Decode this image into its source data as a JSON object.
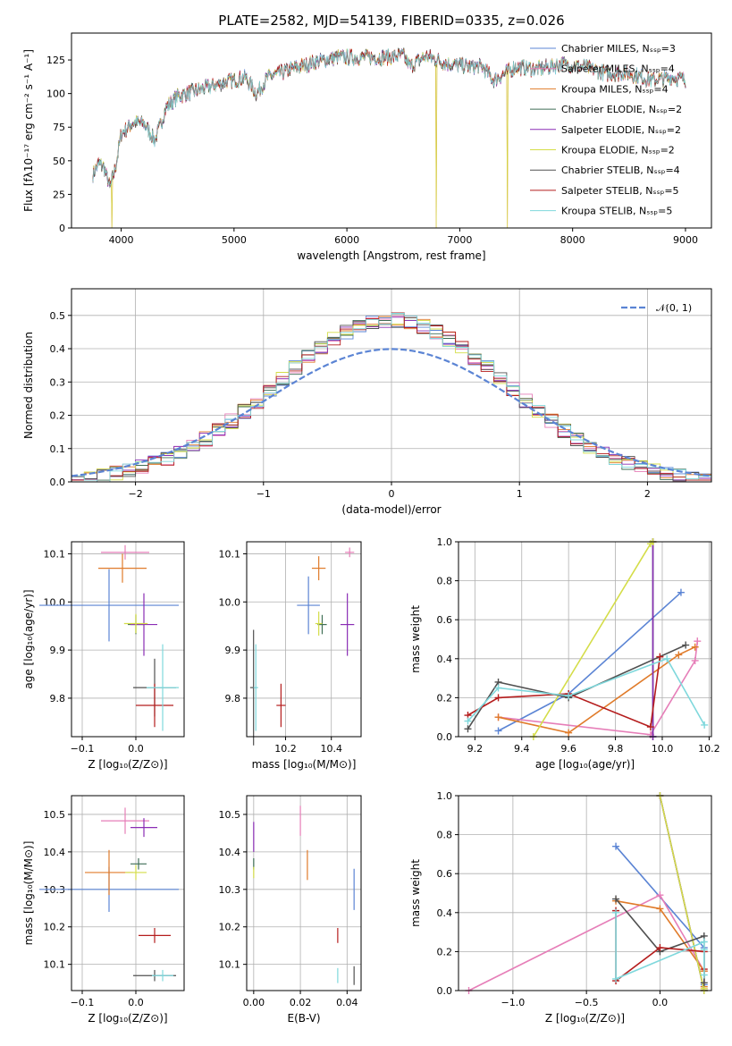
{
  "colors": [
    "#5b84d4",
    "#e67eb8",
    "#e07b2a",
    "#3f6e56",
    "#8a2db5",
    "#d4dd48",
    "#505050",
    "#b51d1d",
    "#7fd8dc"
  ],
  "chart_data": [
    {
      "id": "spectrum",
      "type": "line",
      "title": "PLATE=2582, MJD=54139, FIBERID=0335, z=0.026",
      "xlabel": "wavelength [Angstrom, rest frame]",
      "ylabel": "Flux [fλ10⁻¹⁷ erg cm⁻² s⁻¹ A⁻¹]",
      "xlim": [
        3560,
        9230
      ],
      "ylim": [
        0,
        145
      ],
      "xticks": [
        4000,
        5000,
        6000,
        7000,
        8000,
        9000
      ],
      "yticks": [
        0,
        25,
        50,
        75,
        100,
        125
      ],
      "grid": false,
      "legend_position": "top-right",
      "legend": [
        "Chabrier MILES, Nₛₛₚ=3",
        "Salpeter MILES, Nₛₛₚ=4",
        "Kroupa MILES, Nₛₛₚ=4",
        "Chabrier ELODIE, Nₛₛₚ=2",
        "Salpeter ELODIE, Nₛₛₚ=2",
        "Kroupa ELODIE, Nₛₛₚ=2",
        "Chabrier STELIB, Nₛₛₚ=4",
        "Salpeter STELIB, Nₛₛₚ=5",
        "Kroupa STELIB, Nₛₛₚ=5"
      ],
      "continuum": [
        [
          3750,
          40
        ],
        [
          3800,
          48
        ],
        [
          3850,
          45
        ],
        [
          3900,
          30
        ],
        [
          3950,
          45
        ],
        [
          4000,
          70
        ],
        [
          4100,
          78
        ],
        [
          4200,
          78
        ],
        [
          4300,
          65
        ],
        [
          4400,
          90
        ],
        [
          4500,
          98
        ],
        [
          4700,
          103
        ],
        [
          4900,
          108
        ],
        [
          5100,
          112
        ],
        [
          5200,
          100
        ],
        [
          5300,
          112
        ],
        [
          5500,
          118
        ],
        [
          5700,
          123
        ],
        [
          5900,
          127
        ],
        [
          6100,
          127
        ],
        [
          6300,
          127
        ],
        [
          6500,
          128
        ],
        [
          6560,
          120
        ],
        [
          6700,
          128
        ],
        [
          6900,
          122
        ],
        [
          7100,
          120
        ],
        [
          7200,
          120
        ],
        [
          7300,
          110
        ],
        [
          7500,
          120
        ],
        [
          7700,
          118
        ],
        [
          7900,
          122
        ],
        [
          8100,
          120
        ],
        [
          8300,
          115
        ],
        [
          8500,
          115
        ],
        [
          8700,
          110
        ],
        [
          8900,
          112
        ],
        [
          9000,
          110
        ]
      ],
      "deep_drops": [
        [
          3920,
          0
        ],
        [
          6790,
          0
        ],
        [
          7420,
          0
        ]
      ]
    },
    {
      "id": "residuals",
      "type": "line",
      "xlabel": "(data-model)/error",
      "ylabel": "Normed distribution",
      "xlim": [
        -2.5,
        2.5
      ],
      "ylim": [
        0,
        0.58
      ],
      "xticks": [
        -2,
        -1,
        0,
        1,
        2
      ],
      "xtick_labels": [
        "−2",
        "−1",
        "0",
        "1",
        "2"
      ],
      "yticks": [
        0,
        0.1,
        0.2,
        0.3,
        0.4,
        0.5
      ],
      "ytick_labels": [
        "0.0",
        "0.1",
        "0.2",
        "0.3",
        "0.4",
        "0.5"
      ],
      "grid": true,
      "legend_position": "top-right",
      "reference_label": "𝒩(0, 1)",
      "reference_color": "#5b84d4"
    },
    {
      "id": "age_vs_Z",
      "type": "scatter",
      "xlabel": "Z [log₁₀(Z/Z⊙)]",
      "ylabel": "age  [log₁₀(age/yr)]",
      "xlim": [
        -0.12,
        0.09
      ],
      "ylim": [
        9.72,
        10.125
      ],
      "xticks": [
        -0.1,
        0.0
      ],
      "xtick_labels": [
        "−0.1",
        "0.0"
      ],
      "yticks": [
        9.8,
        9.9,
        10.0,
        10.1
      ],
      "ytick_labels": [
        "9.8",
        "9.9",
        "10.0",
        "10.1"
      ],
      "grid": true,
      "points": [
        {
          "x": -0.05,
          "y": 9.993,
          "xerr": 0.13,
          "yerr": 0.075,
          "c": 0
        },
        {
          "x": -0.02,
          "y": 10.103,
          "xerr": 0.045,
          "yerr": 0.015,
          "c": 1
        },
        {
          "x": -0.025,
          "y": 10.07,
          "xerr": 0.045,
          "yerr": 0.03,
          "c": 2
        },
        {
          "x": 0.0,
          "y": 9.953,
          "xerr": 0.015,
          "yerr": 0.02,
          "c": 3
        },
        {
          "x": 0.015,
          "y": 9.953,
          "xerr": 0.025,
          "yerr": 0.065,
          "c": 4
        },
        {
          "x": 0.0,
          "y": 9.955,
          "xerr": 0.022,
          "yerr": 0.02,
          "c": 5
        },
        {
          "x": 0.035,
          "y": 9.822,
          "xerr": 0.04,
          "yerr": 0.06,
          "c": 6
        },
        {
          "x": 0.035,
          "y": 9.785,
          "xerr": 0.035,
          "yerr": 0.045,
          "c": 7
        },
        {
          "x": 0.05,
          "y": 9.822,
          "xerr": 0.03,
          "yerr": 0.09,
          "c": 8
        }
      ]
    },
    {
      "id": "age_vs_mass",
      "type": "scatter",
      "xlabel": "mass [log₁₀(M/M⊙)]",
      "ylabel": "",
      "xlim": [
        10.03,
        10.53
      ],
      "ylim": [
        9.72,
        10.125
      ],
      "xticks": [
        10.2,
        10.4
      ],
      "xtick_labels": [
        "10.2",
        "10.4"
      ],
      "yticks": [
        9.8,
        9.9,
        10.0,
        10.1
      ],
      "ytick_labels": [
        "9.8",
        "9.9",
        "10.0",
        "10.1"
      ],
      "grid": true,
      "points": [
        {
          "x": 10.3,
          "y": 9.993,
          "xerr": 0.05,
          "yerr": 0.06,
          "c": 0
        },
        {
          "x": 10.48,
          "y": 10.103,
          "xerr": 0.02,
          "yerr": 0.01,
          "c": 1
        },
        {
          "x": 10.345,
          "y": 10.07,
          "xerr": 0.03,
          "yerr": 0.025,
          "c": 2
        },
        {
          "x": 10.36,
          "y": 9.953,
          "xerr": 0.02,
          "yerr": 0.02,
          "c": 3
        },
        {
          "x": 10.47,
          "y": 9.953,
          "xerr": 0.03,
          "yerr": 0.065,
          "c": 4
        },
        {
          "x": 10.345,
          "y": 9.955,
          "xerr": 0.015,
          "yerr": 0.025,
          "c": 5
        },
        {
          "x": 10.06,
          "y": 9.822,
          "xerr": 0.015,
          "yerr": 0.12,
          "c": 6
        },
        {
          "x": 10.18,
          "y": 9.785,
          "xerr": 0.02,
          "yerr": 0.045,
          "c": 7
        },
        {
          "x": 10.07,
          "y": 9.822,
          "xerr": 0.01,
          "yerr": 0.09,
          "c": 8
        }
      ]
    },
    {
      "id": "weights_vs_age",
      "type": "line",
      "xlabel": "age  [log₁₀(age/yr)]",
      "ylabel": "mass weight",
      "xlim": [
        9.13,
        10.21
      ],
      "ylim": [
        0,
        1.0
      ],
      "xticks": [
        9.2,
        9.4,
        9.6,
        9.8,
        10.0,
        10.2
      ],
      "xtick_labels": [
        "9.2",
        "9.4",
        "9.6",
        "9.8",
        "10.0",
        "10.2"
      ],
      "yticks": [
        0,
        0.2,
        0.4,
        0.6,
        0.8,
        1.0
      ],
      "ytick_labels": [
        "0.0",
        "0.2",
        "0.4",
        "0.6",
        "0.8",
        "1.0"
      ],
      "grid": true,
      "series": [
        {
          "c": 0,
          "x": [
            9.3,
            9.6,
            10.08
          ],
          "y": [
            0.03,
            0.22,
            0.74
          ]
        },
        {
          "c": 1,
          "x": [
            9.3,
            9.95,
            10.14,
            10.15
          ],
          "y": [
            0.1,
            0.01,
            0.39,
            0.49
          ]
        },
        {
          "c": 2,
          "x": [
            9.3,
            9.6,
            10.07,
            10.14
          ],
          "y": [
            0.1,
            0.02,
            0.42,
            0.46
          ]
        },
        {
          "c": 3,
          "x": [
            9.96,
            9.96
          ],
          "y": [
            0.0,
            1.0
          ]
        },
        {
          "c": 4,
          "x": [
            9.96,
            9.96
          ],
          "y": [
            0.0,
            1.0
          ]
        },
        {
          "c": 5,
          "x": [
            9.45,
            9.95,
            9.96
          ],
          "y": [
            0.0,
            0.99,
            1.0
          ]
        },
        {
          "c": 6,
          "x": [
            9.17,
            9.3,
            9.6,
            10.1
          ],
          "y": [
            0.04,
            0.28,
            0.2,
            0.47
          ]
        },
        {
          "c": 7,
          "x": [
            9.17,
            9.3,
            9.6,
            9.95,
            9.99
          ],
          "y": [
            0.11,
            0.2,
            0.22,
            0.05,
            0.41
          ]
        },
        {
          "c": 8,
          "x": [
            9.17,
            9.3,
            9.6,
            10.02,
            10.18
          ],
          "y": [
            0.08,
            0.25,
            0.21,
            0.4,
            0.06
          ]
        }
      ]
    },
    {
      "id": "mass_vs_Z",
      "type": "scatter",
      "xlabel": "Z [log₁₀(Z/Z⊙)]",
      "ylabel": "mass [log₁₀(M/M⊙)]",
      "xlim": [
        -0.12,
        0.09
      ],
      "ylim": [
        10.03,
        10.55
      ],
      "xticks": [
        -0.1,
        0.0
      ],
      "xtick_labels": [
        "−0.1",
        "0.0"
      ],
      "yticks": [
        10.1,
        10.2,
        10.3,
        10.4,
        10.5
      ],
      "ytick_labels": [
        "10.1",
        "10.2",
        "10.3",
        "10.4",
        "10.5"
      ],
      "grid": true,
      "points": [
        {
          "x": -0.05,
          "y": 10.3,
          "xerr": 0.13,
          "yerr": 0.06,
          "c": 0
        },
        {
          "x": -0.02,
          "y": 10.483,
          "xerr": 0.045,
          "yerr": 0.035,
          "c": 1
        },
        {
          "x": -0.05,
          "y": 10.345,
          "xerr": 0.045,
          "yerr": 0.06,
          "c": 2
        },
        {
          "x": 0.005,
          "y": 10.368,
          "xerr": 0.015,
          "yerr": 0.015,
          "c": 3
        },
        {
          "x": 0.015,
          "y": 10.465,
          "xerr": 0.025,
          "yerr": 0.025,
          "c": 4
        },
        {
          "x": 0.0,
          "y": 10.345,
          "xerr": 0.02,
          "yerr": 0.02,
          "c": 5
        },
        {
          "x": 0.035,
          "y": 10.07,
          "xerr": 0.04,
          "yerr": 0.015,
          "c": 6
        },
        {
          "x": 0.035,
          "y": 10.177,
          "xerr": 0.03,
          "yerr": 0.02,
          "c": 7
        },
        {
          "x": 0.05,
          "y": 10.07,
          "xerr": 0.02,
          "yerr": 0.015,
          "c": 8
        }
      ]
    },
    {
      "id": "mass_vs_ebv",
      "type": "scatter",
      "xlabel": "E(B-V)",
      "ylabel": "",
      "xlim": [
        -0.003,
        0.046
      ],
      "ylim": [
        10.03,
        10.55
      ],
      "xticks": [
        0.0,
        0.02,
        0.04
      ],
      "xtick_labels": [
        "0.00",
        "0.02",
        "0.04"
      ],
      "yticks": [
        10.1,
        10.2,
        10.3,
        10.4,
        10.5
      ],
      "ytick_labels": [
        "10.1",
        "10.2",
        "10.3",
        "10.4",
        "10.5"
      ],
      "grid": true,
      "points": [
        {
          "x": 0.043,
          "y": 10.3,
          "xerr": 0,
          "yerr": 0.055,
          "c": 0
        },
        {
          "x": 0.02,
          "y": 10.483,
          "xerr": 0,
          "yerr": 0.04,
          "c": 1
        },
        {
          "x": 0.023,
          "y": 10.365,
          "xerr": 0,
          "yerr": 0.04,
          "c": 2
        },
        {
          "x": 0.0,
          "y": 10.368,
          "xerr": 0,
          "yerr": 0.015,
          "c": 3
        },
        {
          "x": 0.0,
          "y": 10.44,
          "xerr": 0,
          "yerr": 0.04,
          "c": 4
        },
        {
          "x": 0.0,
          "y": 10.345,
          "xerr": 0,
          "yerr": 0.015,
          "c": 5
        },
        {
          "x": 0.043,
          "y": 10.07,
          "xerr": 0,
          "yerr": 0.025,
          "c": 6
        },
        {
          "x": 0.036,
          "y": 10.177,
          "xerr": 0,
          "yerr": 0.02,
          "c": 7
        },
        {
          "x": 0.036,
          "y": 10.07,
          "xerr": 0,
          "yerr": 0.02,
          "c": 8
        }
      ]
    },
    {
      "id": "weights_vs_Z",
      "type": "line",
      "xlabel": "Z [log₁₀(Z/Z⊙)]",
      "ylabel": "mass weight",
      "xlim": [
        -1.37,
        0.35
      ],
      "ylim": [
        0,
        1.0
      ],
      "xticks": [
        -1.0,
        -0.5,
        0.0
      ],
      "xtick_labels": [
        "−1.0",
        "−0.5",
        "0.0"
      ],
      "yticks": [
        0,
        0.2,
        0.4,
        0.6,
        0.8,
        1.0
      ],
      "ytick_labels": [
        "0.0",
        "0.2",
        "0.4",
        "0.6",
        "0.8",
        "1.0"
      ],
      "grid": true,
      "series": [
        {
          "c": 0,
          "x": [
            -0.3,
            0.3,
            0.3
          ],
          "y": [
            0.74,
            0.22,
            0.03
          ]
        },
        {
          "c": 1,
          "x": [
            -1.3,
            0.0,
            0.3,
            0.3
          ],
          "y": [
            0.0,
            0.49,
            0.1,
            0.01
          ]
        },
        {
          "c": 2,
          "x": [
            -0.3,
            0.0,
            0.3,
            0.3
          ],
          "y": [
            0.46,
            0.42,
            0.1,
            0.02
          ]
        },
        {
          "c": 3,
          "x": [
            0.0,
            0.3
          ],
          "y": [
            1.0,
            0.0
          ]
        },
        {
          "c": 4,
          "x": [
            0.0,
            0.3
          ],
          "y": [
            1.0,
            0.0
          ]
        },
        {
          "c": 5,
          "x": [
            0.0,
            0.3,
            0.3
          ],
          "y": [
            1.0,
            0.0,
            0.01
          ]
        },
        {
          "c": 6,
          "x": [
            -0.3,
            0.0,
            0.3,
            0.3
          ],
          "y": [
            0.47,
            0.2,
            0.28,
            0.04
          ]
        },
        {
          "c": 7,
          "x": [
            -0.3,
            -0.3,
            0.0,
            0.3,
            0.3
          ],
          "y": [
            0.41,
            0.05,
            0.22,
            0.2,
            0.11
          ]
        },
        {
          "c": 8,
          "x": [
            -0.3,
            -0.3,
            0.3,
            0.3,
            0.3
          ],
          "y": [
            0.4,
            0.06,
            0.25,
            0.21,
            0.08
          ]
        }
      ]
    }
  ]
}
